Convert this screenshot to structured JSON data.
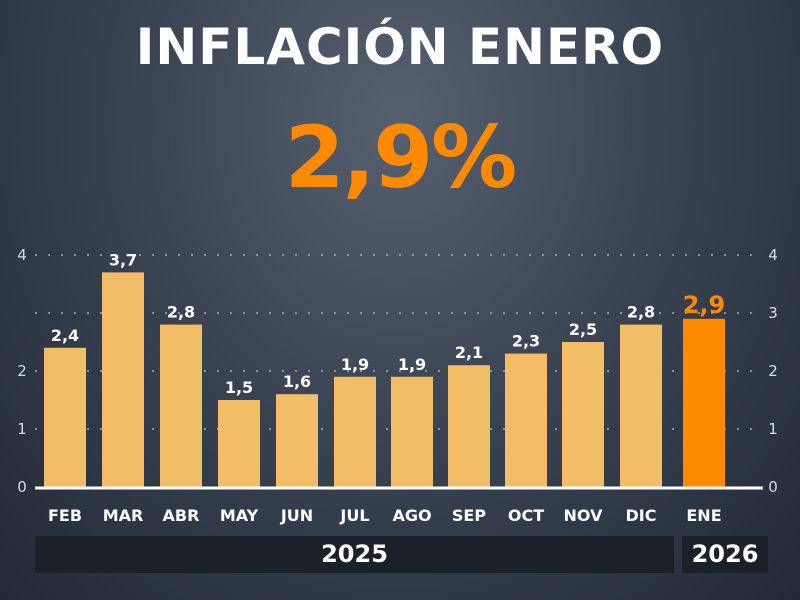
{
  "header": {
    "title": "INFLACIÓN ENERO",
    "headline_value": "2,9%"
  },
  "colors": {
    "bar": "#f2bd66",
    "highlight": "#ff8a00",
    "text": "#ffffff",
    "axis": "#d9dde3"
  },
  "chart_data": {
    "type": "bar",
    "categories": [
      "FEB",
      "MAR",
      "ABR",
      "MAY",
      "JUN",
      "JUL",
      "AGO",
      "SEP",
      "OCT",
      "NOV",
      "DIC",
      "ENE"
    ],
    "values": [
      2.4,
      3.7,
      2.8,
      1.5,
      1.6,
      1.9,
      1.9,
      2.1,
      2.3,
      2.5,
      2.8,
      2.9
    ],
    "data_labels": [
      "2,4",
      "3,7",
      "2,8",
      "1,5",
      "1,6",
      "1,9",
      "1,9",
      "2,1",
      "2,3",
      "2,5",
      "2,8",
      "2,9"
    ],
    "highlight_index": 11,
    "ylim": [
      0,
      4
    ],
    "left_ticks": [
      "0",
      "1",
      "2",
      "",
      "4"
    ],
    "right_ticks": [
      "0",
      "1",
      "2",
      "3",
      "4"
    ],
    "grid": "dotted horizontal",
    "year_groups": [
      {
        "label": "2025",
        "span": 11
      },
      {
        "label": "2026",
        "span": 1
      }
    ]
  }
}
